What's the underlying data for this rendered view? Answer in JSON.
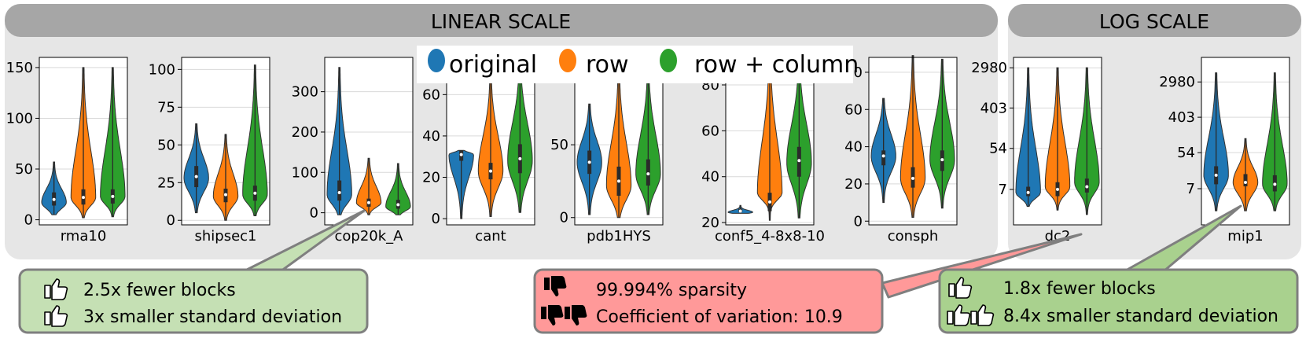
{
  "colors": {
    "original": "#1f77b4",
    "row": "#ff7f0e",
    "row_column": "#2ca02c",
    "panel_bg": "#e6e6e6",
    "header_bg": "#a6a6a6",
    "note_good_light": "#c5e0b4",
    "note_good": "#a9d18e",
    "note_bad": "#ff9999",
    "box_border": "#7f7f7f"
  },
  "headers": {
    "linear": "LINEAR SCALE",
    "log": "LOG SCALE"
  },
  "legend": [
    "original",
    "row",
    "row + column"
  ],
  "chart_data": [
    {
      "type": "violin",
      "scale": "linear",
      "category": "rma10",
      "ylim": [
        -5,
        160
      ],
      "yticks": [
        0,
        50,
        100,
        150
      ],
      "grid": true,
      "series": [
        {
          "name": "original",
          "min": 5,
          "q1": 14,
          "median": 20,
          "q3": 27,
          "max": 57,
          "peak": 17
        },
        {
          "name": "row",
          "min": 2,
          "q1": 15,
          "median": 22,
          "q3": 30,
          "max": 150,
          "peak": 22
        },
        {
          "name": "row + column",
          "min": 3,
          "q1": 16,
          "median": 23,
          "q3": 30,
          "max": 150,
          "peak": 23
        }
      ]
    },
    {
      "type": "violin",
      "scale": "linear",
      "category": "shipsec1",
      "ylim": [
        -3,
        108
      ],
      "yticks": [
        0,
        25,
        50,
        75,
        100
      ],
      "grid": true,
      "series": [
        {
          "name": "original",
          "min": 5,
          "q1": 22,
          "median": 29,
          "q3": 36,
          "max": 64,
          "peak": 28
        },
        {
          "name": "row",
          "min": 0,
          "q1": 12,
          "median": 17,
          "q3": 21,
          "max": 57,
          "peak": 16
        },
        {
          "name": "row + column",
          "min": 3,
          "q1": 13,
          "median": 18,
          "q3": 23,
          "max": 103,
          "peak": 17
        }
      ]
    },
    {
      "type": "violin",
      "scale": "linear",
      "category": "cop20k_A",
      "ylim": [
        -30,
        385
      ],
      "yticks": [
        0,
        100,
        200,
        300
      ],
      "grid": true,
      "series": [
        {
          "name": "original",
          "min": -5,
          "q1": 30,
          "median": 50,
          "q3": 80,
          "max": 360,
          "peak": 45
        },
        {
          "name": "row",
          "min": -5,
          "q1": 15,
          "median": 25,
          "q3": 35,
          "max": 135,
          "peak": 25
        },
        {
          "name": "row + column",
          "min": -5,
          "q1": 10,
          "median": 20,
          "q3": 32,
          "max": 122,
          "peak": 15
        }
      ]
    },
    {
      "type": "violin",
      "scale": "linear",
      "category": "cant",
      "ylim": [
        -3,
        78
      ],
      "yticks": [
        0,
        20,
        40,
        60
      ],
      "grid": true,
      "series": [
        {
          "name": "original",
          "min": 0,
          "q1": 28,
          "median": 31,
          "q3": 33,
          "max": 33,
          "peak": 31
        },
        {
          "name": "row",
          "min": 1,
          "q1": 19,
          "median": 23,
          "q3": 27,
          "max": 70,
          "peak": 23
        },
        {
          "name": "row + column",
          "min": 3,
          "q1": 22,
          "median": 29,
          "q3": 36,
          "max": 78,
          "peak": 28
        }
      ]
    },
    {
      "type": "violin",
      "scale": "linear",
      "category": "pdb1HYS",
      "ylim": [
        -5,
        110
      ],
      "yticks": [
        0,
        50,
        100
      ],
      "grid": true,
      "series": [
        {
          "name": "original",
          "min": 2,
          "q1": 30,
          "median": 38,
          "q3": 46,
          "max": 78,
          "peak": 38
        },
        {
          "name": "row",
          "min": 0,
          "q1": 15,
          "median": 25,
          "q3": 35,
          "max": 105,
          "peak": 22
        },
        {
          "name": "row + column",
          "min": 2,
          "q1": 22,
          "median": 30,
          "q3": 40,
          "max": 105,
          "peak": 30
        }
      ]
    },
    {
      "type": "violin",
      "scale": "linear",
      "category": "conf5_4-8x8-10",
      "ylim": [
        19,
        92
      ],
      "yticks": [
        20,
        40,
        60,
        80
      ],
      "grid": true,
      "series": [
        {
          "name": "original",
          "min": 24,
          "q1": 24.5,
          "median": 25,
          "q3": 26,
          "max": 27.5,
          "peak": 24.5
        },
        {
          "name": "row",
          "min": 21,
          "q1": 25,
          "median": 29,
          "q3": 33,
          "max": 92,
          "peak": 33
        },
        {
          "name": "row + column",
          "min": 22,
          "q1": 40,
          "median": 47,
          "q3": 53,
          "max": 92,
          "peak": 46
        }
      ]
    },
    {
      "type": "violin",
      "scale": "linear",
      "category": "consph",
      "ylim": [
        -2,
        88
      ],
      "yticks": [
        0,
        20,
        40,
        60,
        80
      ],
      "grid": true,
      "series": [
        {
          "name": "original",
          "min": 10,
          "q1": 30,
          "median": 35,
          "q3": 38,
          "max": 66,
          "peak": 35
        },
        {
          "name": "row",
          "min": 2,
          "q1": 18,
          "median": 23,
          "q3": 29,
          "max": 89,
          "peak": 23
        },
        {
          "name": "row + column",
          "min": 7,
          "q1": 27,
          "median": 33,
          "q3": 38,
          "max": 87,
          "peak": 33
        }
      ]
    },
    {
      "type": "violin",
      "scale": "log",
      "category": "dc2",
      "ylim": [
        1.2,
        5000
      ],
      "yticks": [
        7,
        54,
        403,
        2980
      ],
      "grid": true,
      "series": [
        {
          "name": "original",
          "min": 3,
          "q1": 5,
          "median": 6,
          "q3": 8,
          "max": 3000,
          "peak": 6
        },
        {
          "name": "row",
          "min": 2.5,
          "q1": 5,
          "median": 7,
          "q3": 10,
          "max": 3000,
          "peak": 8
        },
        {
          "name": "row + column",
          "min": 2,
          "q1": 6,
          "median": 8,
          "q3": 12,
          "max": 3000,
          "peak": 10
        }
      ]
    },
    {
      "type": "violin",
      "scale": "log",
      "category": "mip1",
      "ylim": [
        0.9,
        12000
      ],
      "yticks": [
        7,
        54,
        403,
        2980
      ],
      "grid": true,
      "series": [
        {
          "name": "original",
          "min": 2,
          "q1": 9,
          "median": 15,
          "q3": 25,
          "max": 5000,
          "peak": 15
        },
        {
          "name": "row",
          "min": 2,
          "q1": 8,
          "median": 10,
          "q3": 16,
          "max": 120,
          "peak": 10
        },
        {
          "name": "row + column",
          "min": 2,
          "q1": 6,
          "median": 9,
          "q3": 15,
          "max": 5000,
          "peak": 9
        }
      ]
    }
  ],
  "notes": [
    {
      "lines": [
        "2.5x fewer blocks",
        "3x smaller standard deviation"
      ]
    },
    {
      "lines": [
        "99.994% sparsity",
        "Coefficient of variation: 10.9"
      ]
    },
    {
      "lines": [
        "1.8x fewer blocks",
        "8.4x smaller standard deviation"
      ]
    }
  ]
}
